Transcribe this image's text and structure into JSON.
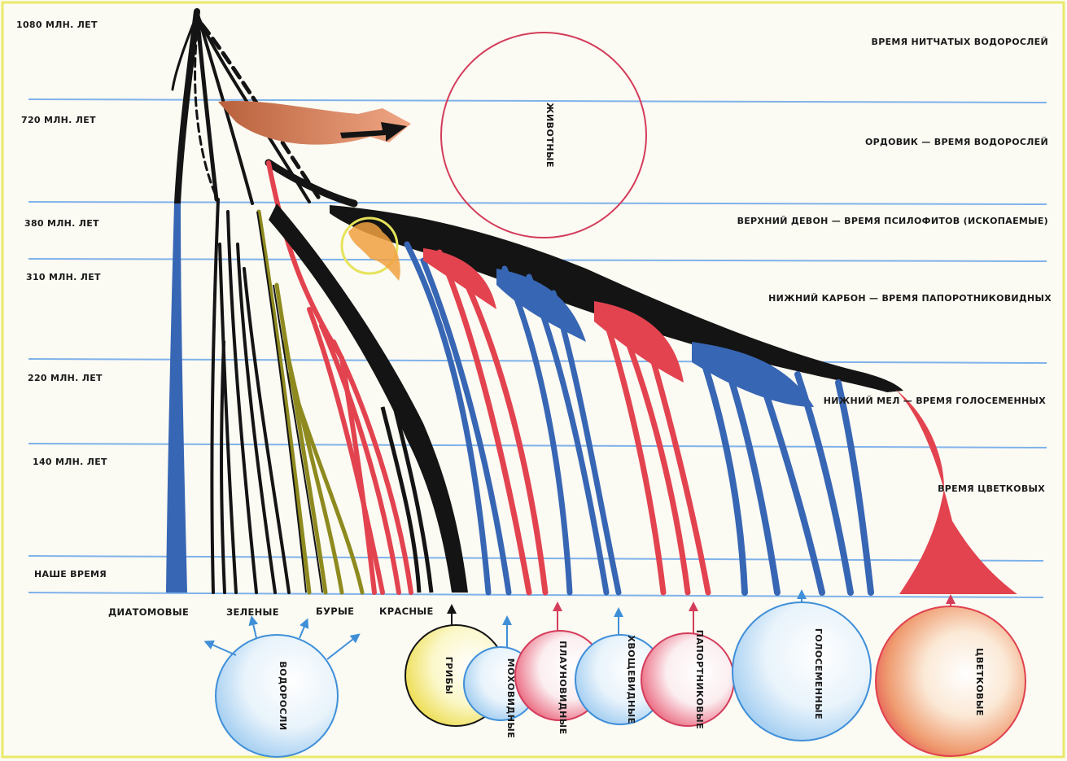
{
  "colors": {
    "blue": "#3766b4",
    "red": "#e2434f",
    "black": "#141414",
    "olive": "#8e8a1f",
    "animal_arrow": "#d9845a",
    "hline": "#7fb2ea",
    "frame": "#e9ea6a",
    "circle_red": "#d43c5a",
    "circle_blue": "#3f8fd8"
  },
  "ages": [
    "1080 МЛН. ЛЕТ",
    "720 МЛН. ЛЕТ",
    "380 МЛН. ЛЕТ",
    "310 МЛН. ЛЕТ",
    "220 МЛН. ЛЕТ",
    "140 МЛН. ЛЕТ",
    "НАШЕ ВРЕМЯ"
  ],
  "eras": [
    "ВРЕМЯ НИТЧАТЫХ ВОДОРОСЛЕЙ",
    "ОРДОВИК — ВРЕМЯ ВОДОРОСЛЕЙ",
    "ВЕРХНИЙ ДЕВОН — ВРЕМЯ ПСИЛОФИТОВ (ИСКОПАЕМЫЕ)",
    "НИЖНИЙ КАРБОН — ВРЕМЯ ПАПОРОТНИКОВИДНЫХ",
    "НИЖНИЙ МЕЛ — ВРЕМЯ ГОЛОСЕМЕННЫХ",
    "ВРЕМЯ ЦВЕТКОВЫХ"
  ],
  "algae_groups": [
    "ДИАТОМОВЫЕ",
    "ЗЕЛЕНЫЕ",
    "БУРЫЕ",
    "КРАСНЫЕ"
  ],
  "animals_label": "ЖИВОТНЫЕ",
  "circles": {
    "algae": "ВОДОРОСЛИ",
    "fungi": "ГРИБЫ",
    "mosses": "МОХОВИДНЫЕ",
    "lycopods": "ПЛАУНОВИДНЫЕ",
    "horsetails": "ХВОЩЕВИДНЫЕ",
    "ferns": "ПАПОРТНИКОВЫЕ",
    "gymnosperms": "ГОЛОСЕМЕННЫЕ",
    "angiosperms": "ЦВЕТКОВЫЕ"
  }
}
